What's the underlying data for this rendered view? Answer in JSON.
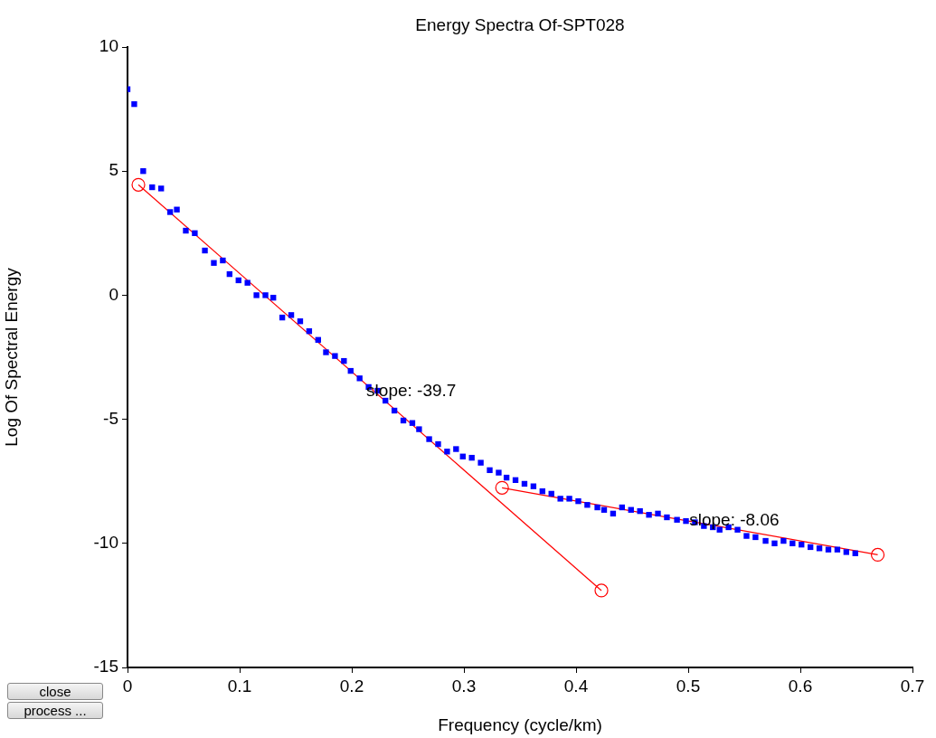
{
  "chart_data": {
    "type": "scatter",
    "title": "Energy Spectra Of-SPT028",
    "xlabel": "Frequency (cycle/km)",
    "ylabel": "Log Of Spectral Energy",
    "xlim": [
      0,
      0.7
    ],
    "xticks": [
      0,
      0.1,
      0.2,
      0.3,
      0.4,
      0.5,
      0.6,
      0.7
    ],
    "ylim": [
      -15,
      10
    ],
    "yticks": [
      -15,
      -10,
      -5,
      0,
      5,
      10
    ],
    "grid": false,
    "legend": false,
    "series": [
      {
        "color": "#0000ff",
        "marker": "square",
        "x": [
          0,
          0.006,
          0.014,
          0.022,
          0.03,
          0.038,
          0.044,
          0.052,
          0.06,
          0.069,
          0.077,
          0.085,
          0.091,
          0.099,
          0.107,
          0.115,
          0.123,
          0.13,
          0.138,
          0.146,
          0.154,
          0.162,
          0.17,
          0.177,
          0.185,
          0.193,
          0.199,
          0.207,
          0.215,
          0.223,
          0.23,
          0.238,
          0.246,
          0.254,
          0.26,
          0.269,
          0.277,
          0.285,
          0.293,
          0.299,
          0.307,
          0.315,
          0.323,
          0.331,
          0.338,
          0.346,
          0.354,
          0.362,
          0.37,
          0.378,
          0.386,
          0.394,
          0.402,
          0.41,
          0.419,
          0.425,
          0.433,
          0.441,
          0.449,
          0.457,
          0.465,
          0.473,
          0.481,
          0.49,
          0.498,
          0.506,
          0.514,
          0.522,
          0.528,
          0.536,
          0.544,
          0.552,
          0.56,
          0.569,
          0.577,
          0.585,
          0.593,
          0.601,
          0.609,
          0.617,
          0.625,
          0.633,
          0.641,
          0.649
        ],
        "values": [
          8.3,
          7.7,
          5.0,
          4.35,
          4.3,
          3.35,
          3.45,
          2.6,
          2.5,
          1.8,
          1.3,
          1.4,
          0.85,
          0.6,
          0.5,
          0.0,
          0.0,
          -0.1,
          -0.9,
          -0.8,
          -1.05,
          -1.45,
          -1.8,
          -2.3,
          -2.45,
          -2.65,
          -3.05,
          -3.35,
          -3.7,
          -3.85,
          -4.25,
          -4.65,
          -5.05,
          -5.15,
          -5.4,
          -5.8,
          -6.0,
          -6.3,
          -6.2,
          -6.5,
          -6.55,
          -6.75,
          -7.05,
          -7.15,
          -7.35,
          -7.45,
          -7.6,
          -7.7,
          -7.9,
          -8.0,
          -8.2,
          -8.2,
          -8.3,
          -8.45,
          -8.55,
          -8.65,
          -8.8,
          -8.55,
          -8.65,
          -8.7,
          -8.85,
          -8.8,
          -8.95,
          -9.05,
          -9.1,
          -9.15,
          -9.3,
          -9.35,
          -9.45,
          -9.35,
          -9.45,
          -9.7,
          -9.75,
          -9.9,
          -10.0,
          -9.9,
          -10.0,
          -10.05,
          -10.15,
          -10.2,
          -10.25,
          -10.25,
          -10.35,
          -10.4
        ]
      },
      {
        "type": "line",
        "color": "#ff0000",
        "marker": "circle",
        "line_style": "solid",
        "x": [
          0.0097,
          0.4226
        ],
        "values": [
          4.45,
          -11.9
        ]
      },
      {
        "type": "line",
        "color": "#ff0000",
        "marker": "circle",
        "line_style": "solid",
        "x": [
          0.334,
          0.669
        ],
        "values": [
          -7.76,
          -10.46
        ]
      }
    ],
    "annotations": [
      {
        "text": "slope: -39.7",
        "x": 0.213,
        "y": -3.86
      },
      {
        "text": "slope: -8.06",
        "x": 0.501,
        "y": -9.07
      },
      "close",
      "process ..."
    ]
  }
}
